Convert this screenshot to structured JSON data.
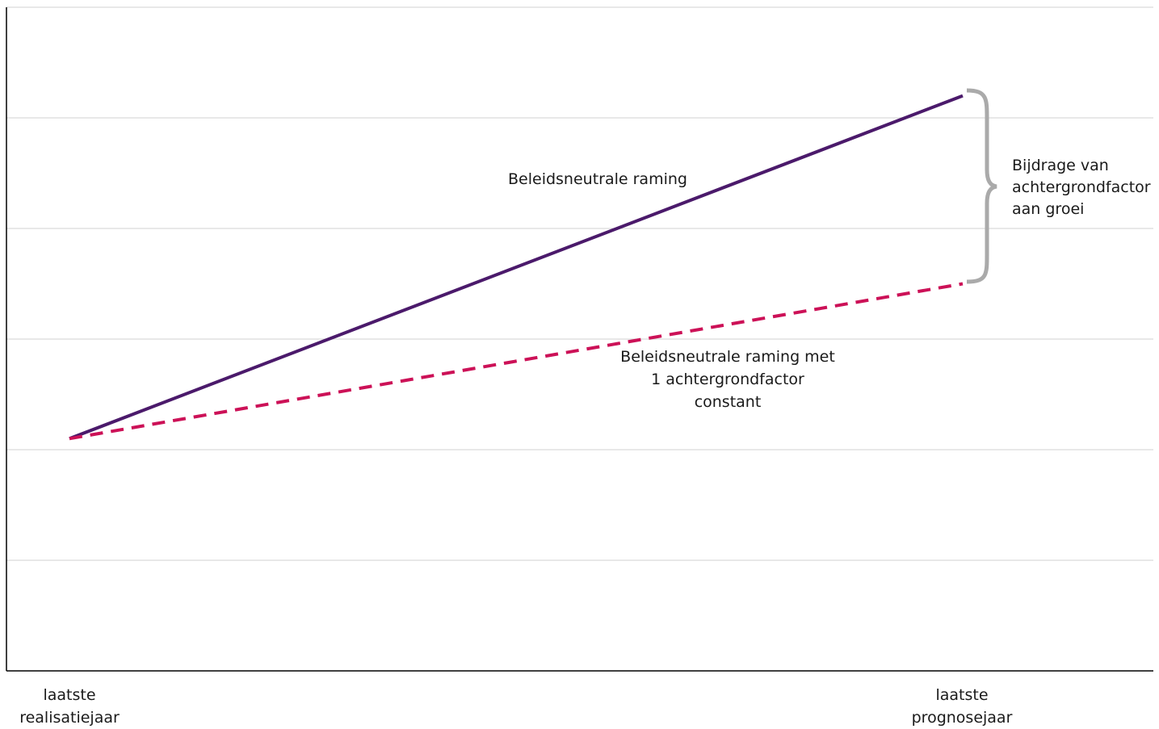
{
  "chart_data": {
    "type": "line",
    "categories": [
      "laatste realisatiejaar",
      "laatste prognosejaar"
    ],
    "ylim": [
      0,
      6
    ],
    "grid": true,
    "y_gridlines": [
      1,
      2,
      3,
      4,
      5,
      6
    ],
    "series": [
      {
        "name": "Beleidsneutrale raming",
        "style": "solid",
        "color": "#4b1a6b",
        "values": [
          2.1,
          5.2
        ]
      },
      {
        "name": "Beleidsneutrale raming met 1 achtergrondfactor constant",
        "style": "dashed",
        "color": "#cc1157",
        "values": [
          2.1,
          3.5
        ]
      }
    ],
    "tick_labels": [
      {
        "line1": "laatste",
        "line2": "realisatiejaar"
      },
      {
        "line1": "laatste",
        "line2": "prognosejaar"
      }
    ],
    "annotations": {
      "solid_label": "Beleidsneutrale raming",
      "dashed_label": {
        "line1": "Beleidsneutrale raming met",
        "line2": "1 achtergrondfactor",
        "line3": "constant"
      },
      "brace_label": {
        "line1": "Bijdrage van",
        "line2": "achtergrondfactor",
        "line3": "aan groei"
      },
      "brace_color": "#aaaaaa"
    },
    "colors": {
      "gridline": "#d9d9d9",
      "axis": "#000000"
    }
  }
}
